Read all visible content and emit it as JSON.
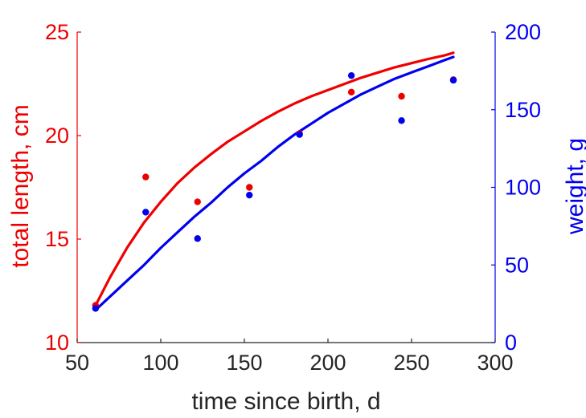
{
  "chart_data": {
    "type": "scatter",
    "title": "",
    "xlabel": "time since birth, d",
    "ylabel_left": "total length, cm",
    "ylabel_right": "weight, g",
    "xlim": [
      50,
      300
    ],
    "ylim_left": [
      10,
      25
    ],
    "ylim_right": [
      0,
      200
    ],
    "x_ticks": [
      "50",
      "100",
      "150",
      "200",
      "250",
      "300"
    ],
    "y_left_ticks": [
      "10",
      "15",
      "20",
      "25"
    ],
    "y_right_ticks": [
      "0",
      "50",
      "100",
      "150",
      "200"
    ],
    "grid": false,
    "legend": "none",
    "colors": {
      "length": "#ee0000",
      "weight": "#0000ee",
      "axis": "#262626"
    },
    "series": [
      {
        "axis": "left",
        "kind": "points",
        "color": "#ee0000",
        "points": [
          [
            61,
            11.8
          ],
          [
            91,
            18.0
          ],
          [
            122,
            16.8
          ],
          [
            153,
            17.5
          ],
          [
            183,
            20.1
          ],
          [
            214,
            22.1
          ],
          [
            244,
            21.9
          ],
          [
            275,
            22.7
          ]
        ]
      },
      {
        "axis": "right",
        "kind": "points",
        "color": "#0000ee",
        "points": [
          [
            61,
            22
          ],
          [
            91,
            84
          ],
          [
            122,
            67
          ],
          [
            153,
            95
          ],
          [
            183,
            134
          ],
          [
            214,
            172
          ],
          [
            244,
            143
          ],
          [
            275,
            169
          ]
        ]
      },
      {
        "axis": "left",
        "kind": "line",
        "color": "#ee0000",
        "points": [
          [
            61,
            11.8
          ],
          [
            70,
            13.2
          ],
          [
            80,
            14.6
          ],
          [
            90,
            15.8
          ],
          [
            100,
            16.8
          ],
          [
            110,
            17.7
          ],
          [
            120,
            18.45
          ],
          [
            130,
            19.1
          ],
          [
            140,
            19.7
          ],
          [
            150,
            20.2
          ],
          [
            160,
            20.7
          ],
          [
            170,
            21.15
          ],
          [
            180,
            21.55
          ],
          [
            190,
            21.9
          ],
          [
            200,
            22.2
          ],
          [
            210,
            22.5
          ],
          [
            220,
            22.8
          ],
          [
            230,
            23.05
          ],
          [
            240,
            23.3
          ],
          [
            250,
            23.5
          ],
          [
            260,
            23.7
          ],
          [
            270,
            23.88
          ],
          [
            275,
            24.0
          ]
        ]
      },
      {
        "axis": "right",
        "kind": "line",
        "color": "#0000ee",
        "points": [
          [
            61,
            21
          ],
          [
            70,
            30
          ],
          [
            80,
            40
          ],
          [
            90,
            50
          ],
          [
            100,
            61
          ],
          [
            110,
            71
          ],
          [
            120,
            81
          ],
          [
            130,
            90
          ],
          [
            140,
            100
          ],
          [
            150,
            109
          ],
          [
            160,
            117
          ],
          [
            170,
            126
          ],
          [
            180,
            134
          ],
          [
            190,
            141
          ],
          [
            200,
            148
          ],
          [
            210,
            154
          ],
          [
            220,
            160
          ],
          [
            230,
            165
          ],
          [
            240,
            170
          ],
          [
            250,
            174
          ],
          [
            260,
            178
          ],
          [
            270,
            182
          ],
          [
            275,
            184
          ]
        ]
      }
    ]
  }
}
